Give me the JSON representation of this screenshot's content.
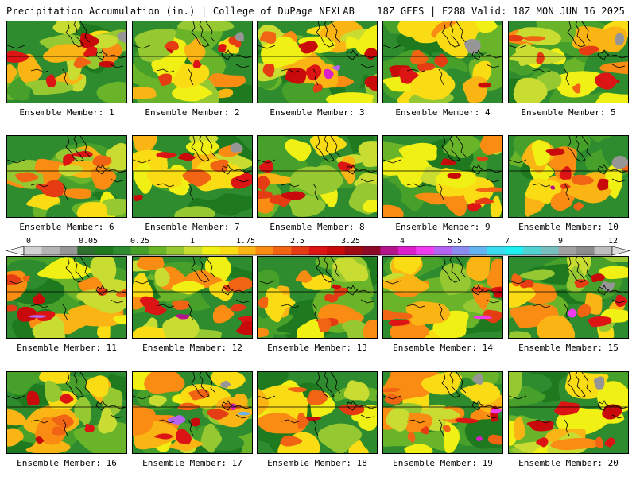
{
  "header": {
    "title_left": "Precipitation Accumulation (in.) | College of DuPage NEXLAB",
    "title_right": "18Z GEFS | F288 Valid: 18Z MON JUN 16 2025"
  },
  "panels": [
    {
      "label": "Ensemble Member: 1",
      "seed": 11,
      "wet": 0.55
    },
    {
      "label": "Ensemble Member: 2",
      "seed": 27,
      "wet": 0.45
    },
    {
      "label": "Ensemble Member: 3",
      "seed": 39,
      "wet": 0.75
    },
    {
      "label": "Ensemble Member: 4",
      "seed": 48,
      "wet": 0.55
    },
    {
      "label": "Ensemble Member: 5",
      "seed": 53,
      "wet": 0.6
    },
    {
      "label": "Ensemble Member: 6",
      "seed": 61,
      "wet": 0.5
    },
    {
      "label": "Ensemble Member: 7",
      "seed": 72,
      "wet": 0.55
    },
    {
      "label": "Ensemble Member: 8",
      "seed": 85,
      "wet": 0.55
    },
    {
      "label": "Ensemble Member: 9",
      "seed": 94,
      "wet": 0.55
    },
    {
      "label": "Ensemble Member: 10",
      "seed": 103,
      "wet": 0.65
    },
    {
      "label": "Ensemble Member: 11",
      "seed": 117,
      "wet": 0.7
    },
    {
      "label": "Ensemble Member: 12",
      "seed": 125,
      "wet": 0.7
    },
    {
      "label": "Ensemble Member: 13",
      "seed": 131,
      "wet": 0.45
    },
    {
      "label": "Ensemble Member: 14",
      "seed": 146,
      "wet": 0.65
    },
    {
      "label": "Ensemble Member: 15",
      "seed": 152,
      "wet": 0.65
    },
    {
      "label": "Ensemble Member: 16",
      "seed": 168,
      "wet": 0.55
    },
    {
      "label": "Ensemble Member: 17",
      "seed": 173,
      "wet": 0.8
    },
    {
      "label": "Ensemble Member: 18",
      "seed": 189,
      "wet": 0.5
    },
    {
      "label": "Ensemble Member: 19",
      "seed": 197,
      "wet": 0.75
    },
    {
      "label": "Ensemble Member: 20",
      "seed": 205,
      "wet": 0.45
    }
  ],
  "colorbar": {
    "tick_labels": [
      "0",
      "0.05",
      "0.25",
      "1",
      "1.75",
      "2.5",
      "3.25",
      "4",
      "5.5",
      "7",
      "9",
      "12"
    ],
    "colors": [
      "#f0f0f0",
      "#d2d2d2",
      "#b4b4b4",
      "#969696",
      "#2e6e2e",
      "#1f7a1f",
      "#2e8b2e",
      "#46a02a",
      "#6ab42a",
      "#96c832",
      "#c8dc32",
      "#f0f014",
      "#fadc14",
      "#fab414",
      "#fa8c14",
      "#f06414",
      "#e63c14",
      "#dc1414",
      "#c80a0a",
      "#a00a14",
      "#8c0a28",
      "#b4148c",
      "#dc1ec8",
      "#f03cf0",
      "#b464f0",
      "#8c8cf0",
      "#64b4f0",
      "#3cdcf0",
      "#1ef0f0",
      "#50d2d2",
      "#78bebe",
      "#a0a0a0",
      "#8c8c8c",
      "#bebebe",
      "#dcdcdc"
    ]
  }
}
